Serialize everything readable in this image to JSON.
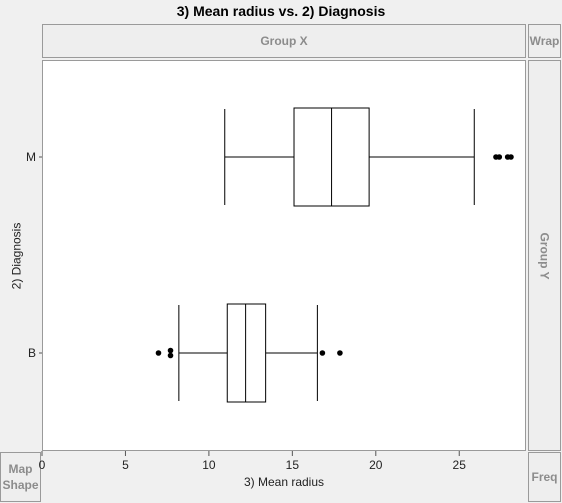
{
  "window": {
    "title": "3) Mean radius vs. 2) Diagnosis"
  },
  "zones": {
    "group_x": "Group X",
    "wrap": "Wrap",
    "group_y": "Group Y",
    "map_shape_line1": "Map",
    "map_shape_line2": "Shape",
    "freq": "Freq"
  },
  "chart_data": {
    "type": "boxplot",
    "xlabel": "3) Mean radius",
    "ylabel": "2) Diagnosis",
    "xlim": [
      0,
      29
    ],
    "xticks": [
      0,
      5,
      10,
      15,
      20,
      25
    ],
    "categories": [
      "M",
      "B"
    ],
    "boxes": [
      {
        "category": "M",
        "whisker_low": 10.95,
        "q1": 15.1,
        "median": 17.35,
        "q3": 19.6,
        "whisker_high": 25.9,
        "outliers": [
          27.2,
          27.4,
          27.9,
          28.1
        ]
      },
      {
        "category": "B",
        "whisker_low": 8.2,
        "q1": 11.1,
        "median": 12.2,
        "q3": 13.4,
        "whisker_high": 16.5,
        "outliers": [
          6.98,
          7.7,
          7.7,
          16.8,
          17.85
        ]
      }
    ],
    "grid": false
  }
}
